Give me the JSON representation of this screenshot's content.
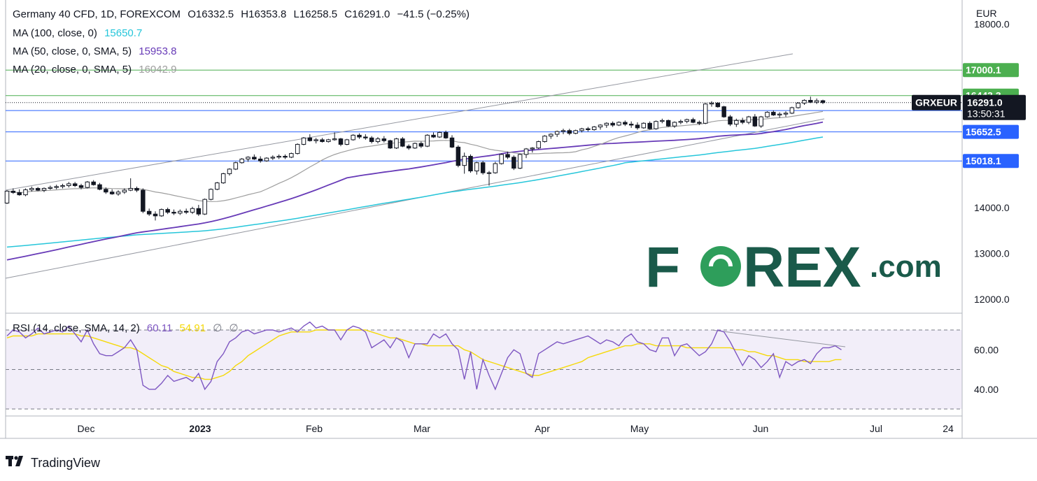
{
  "header": {
    "symbol": "Germany 40 CFD, 1D, FOREXCOM",
    "open_label": "O",
    "open": "16332.5",
    "high_label": "H",
    "high": "16353.8",
    "low_label": "L",
    "low": "16258.5",
    "close_label": "C",
    "close": "16291.0",
    "change": "−41.5 (−0.25%)"
  },
  "indicators": {
    "ma100": {
      "label": "MA (100, close, 0)",
      "value": "15650.7",
      "color": "#26c6da"
    },
    "ma50": {
      "label": "MA (50, close, 0, SMA, 5)",
      "value": "15953.8",
      "color": "#673ab7"
    },
    "ma20": {
      "label": "MA (20, close, 0, SMA, 5)",
      "value": "16042.9",
      "color": "#9e9e9e"
    },
    "rsi": {
      "label": "RSI (14, close, SMA, 14, 2)",
      "value": "60.11",
      "sma_value": "54.91",
      "extra1": "∅",
      "extra2": "∅",
      "color": "#7e57c2",
      "sma_color": "#f5d90a"
    }
  },
  "price_axis": {
    "currency": "EUR",
    "ticks": [
      "18000.0",
      "14000.0",
      "13000.0",
      "12000.0"
    ],
    "levels": [
      {
        "value": "17000.1",
        "color": "#4caf50"
      },
      {
        "value": "16443.3",
        "color": "#4caf50"
      },
      {
        "value": "16117.0",
        "color": "#2962ff"
      },
      {
        "value": "15652.5",
        "color": "#2962ff"
      },
      {
        "value": "15018.1",
        "color": "#2962ff"
      }
    ],
    "current": {
      "symbol": "GRXEUR",
      "price": "16291.0",
      "countdown": "13:50:31"
    }
  },
  "rsi_axis": {
    "ticks": [
      "60.00",
      "40.00"
    ]
  },
  "time_axis": {
    "labels": [
      "Dec",
      "2023",
      "Feb",
      "Mar",
      "Apr",
      "May",
      "Jun",
      "Jul",
      "24"
    ]
  },
  "watermark": {
    "text_a": "F",
    "text_b": "REX",
    "text_c": ".com",
    "color": "#1a5a4a"
  },
  "branding": {
    "text": "TradingView"
  },
  "chart_data": {
    "type": "candlestick",
    "title": "Germany 40 CFD, 1D, FOREXCOM",
    "ylim": [
      11800,
      18100
    ],
    "rsi_ylim": [
      30,
      75
    ],
    "horizontal_levels": [
      17000.1,
      16443.3,
      16117.0,
      15652.5,
      15018.1
    ],
    "candles": [
      [
        14100,
        14380,
        14080,
        14360
      ],
      [
        14360,
        14420,
        14300,
        14330
      ],
      [
        14330,
        14400,
        14260,
        14280
      ],
      [
        14280,
        14420,
        14250,
        14390
      ],
      [
        14390,
        14460,
        14350,
        14420
      ],
      [
        14420,
        14450,
        14360,
        14380
      ],
      [
        14380,
        14440,
        14340,
        14420
      ],
      [
        14420,
        14480,
        14390,
        14440
      ],
      [
        14440,
        14500,
        14400,
        14460
      ],
      [
        14460,
        14520,
        14420,
        14480
      ],
      [
        14480,
        14560,
        14440,
        14520
      ],
      [
        14520,
        14560,
        14450,
        14480
      ],
      [
        14480,
        14520,
        14400,
        14440
      ],
      [
        14440,
        14580,
        14420,
        14560
      ],
      [
        14560,
        14600,
        14480,
        14500
      ],
      [
        14500,
        14540,
        14380,
        14400
      ],
      [
        14400,
        14440,
        14300,
        14340
      ],
      [
        14340,
        14400,
        14280,
        14300
      ],
      [
        14300,
        14380,
        14260,
        14340
      ],
      [
        14340,
        14420,
        14300,
        14380
      ],
      [
        14380,
        14640,
        14360,
        14420
      ],
      [
        14420,
        14460,
        14340,
        14380
      ],
      [
        14380,
        14420,
        13880,
        13920
      ],
      [
        13920,
        13980,
        13820,
        13860
      ],
      [
        13860,
        13920,
        13720,
        13820
      ],
      [
        13820,
        13980,
        13800,
        13960
      ],
      [
        13960,
        14000,
        13860,
        13900
      ],
      [
        13900,
        13960,
        13840,
        13880
      ],
      [
        13880,
        13960,
        13840,
        13920
      ],
      [
        13920,
        13980,
        13860,
        13900
      ],
      [
        13900,
        14020,
        13860,
        13980
      ],
      [
        13980,
        14060,
        13820,
        13860
      ],
      [
        13860,
        14200,
        13840,
        14180
      ],
      [
        14180,
        14420,
        14160,
        14400
      ],
      [
        14400,
        14560,
        14380,
        14540
      ],
      [
        14540,
        14760,
        14520,
        14740
      ],
      [
        14740,
        14860,
        14700,
        14840
      ],
      [
        14840,
        15000,
        14820,
        14980
      ],
      [
        14980,
        15080,
        14960,
        15060
      ],
      [
        15060,
        15120,
        15000,
        15100
      ],
      [
        15100,
        15160,
        15040,
        15060
      ],
      [
        15060,
        15120,
        14980,
        15020
      ],
      [
        15020,
        15100,
        15000,
        15080
      ],
      [
        15080,
        15140,
        15040,
        15100
      ],
      [
        15100,
        15160,
        15060,
        15120
      ],
      [
        15120,
        15160,
        15060,
        15100
      ],
      [
        15100,
        15200,
        15080,
        15180
      ],
      [
        15180,
        15400,
        15160,
        15380
      ],
      [
        15380,
        15540,
        15360,
        15520
      ],
      [
        15520,
        15600,
        15440,
        15460
      ],
      [
        15460,
        15520,
        15400,
        15480
      ],
      [
        15480,
        15520,
        15420,
        15440
      ],
      [
        15440,
        15500,
        15420,
        15480
      ],
      [
        15480,
        15640,
        15460,
        15500
      ],
      [
        15500,
        15520,
        15340,
        15380
      ],
      [
        15380,
        15500,
        15360,
        15480
      ],
      [
        15480,
        15600,
        15460,
        15580
      ],
      [
        15580,
        15620,
        15500,
        15540
      ],
      [
        15540,
        15600,
        15480,
        15520
      ],
      [
        15520,
        15560,
        15400,
        15440
      ],
      [
        15440,
        15540,
        15400,
        15500
      ],
      [
        15500,
        15560,
        15420,
        15460
      ],
      [
        15460,
        15480,
        15280,
        15300
      ],
      [
        15300,
        15520,
        15280,
        15500
      ],
      [
        15500,
        15540,
        15320,
        15340
      ],
      [
        15340,
        15380,
        15260,
        15300
      ],
      [
        15300,
        15420,
        15280,
        15400
      ],
      [
        15400,
        15440,
        15300,
        15340
      ],
      [
        15340,
        15600,
        15320,
        15580
      ],
      [
        15580,
        15640,
        15520,
        15540
      ],
      [
        15540,
        15660,
        15520,
        15640
      ],
      [
        15640,
        15680,
        15500,
        15520
      ],
      [
        15520,
        15580,
        15300,
        15320
      ],
      [
        15320,
        15360,
        14880,
        14920
      ],
      [
        14920,
        15200,
        14740,
        15120
      ],
      [
        15120,
        15160,
        14760,
        14800
      ],
      [
        14800,
        15000,
        14720,
        14980
      ],
      [
        14980,
        15020,
        14720,
        14760
      ],
      [
        14760,
        14800,
        14480,
        14760
      ],
      [
        14760,
        15000,
        14740,
        14960
      ],
      [
        14960,
        15180,
        14940,
        15160
      ],
      [
        15160,
        15220,
        15060,
        15100
      ],
      [
        15100,
        15140,
        14820,
        14860
      ],
      [
        14860,
        15180,
        14840,
        15160
      ],
      [
        15160,
        15300,
        15080,
        15280
      ],
      [
        15280,
        15320,
        15200,
        15300
      ],
      [
        15300,
        15460,
        15280,
        15440
      ],
      [
        15440,
        15580,
        15420,
        15560
      ],
      [
        15560,
        15620,
        15500,
        15600
      ],
      [
        15600,
        15680,
        15540,
        15660
      ],
      [
        15660,
        15720,
        15600,
        15680
      ],
      [
        15680,
        15720,
        15580,
        15620
      ],
      [
        15620,
        15700,
        15600,
        15680
      ],
      [
        15680,
        15740,
        15640,
        15720
      ],
      [
        15720,
        15760,
        15660,
        15700
      ],
      [
        15700,
        15780,
        15680,
        15760
      ],
      [
        15760,
        15820,
        15700,
        15800
      ],
      [
        15800,
        15860,
        15740,
        15840
      ],
      [
        15840,
        15880,
        15760,
        15800
      ],
      [
        15800,
        15880,
        15780,
        15860
      ],
      [
        15860,
        15900,
        15780,
        15820
      ],
      [
        15820,
        15880,
        15740,
        15800
      ],
      [
        15800,
        15860,
        15700,
        15740
      ],
      [
        15740,
        15860,
        15720,
        15840
      ],
      [
        15840,
        15880,
        15700,
        15720
      ],
      [
        15720,
        15900,
        15700,
        15880
      ],
      [
        15880,
        15940,
        15840,
        15900
      ],
      [
        15900,
        15920,
        15760,
        15780
      ],
      [
        15780,
        15880,
        15740,
        15860
      ],
      [
        15860,
        15920,
        15820,
        15880
      ],
      [
        15880,
        15940,
        15840,
        15920
      ],
      [
        15920,
        15960,
        15840,
        15860
      ],
      [
        15860,
        15900,
        15800,
        15840
      ],
      [
        15840,
        16280,
        15820,
        16260
      ],
      [
        16260,
        16320,
        16200,
        16280
      ],
      [
        16280,
        16300,
        16180,
        16200
      ],
      [
        16200,
        16220,
        15960,
        15980
      ],
      [
        15980,
        16020,
        15780,
        15820
      ],
      [
        15820,
        15940,
        15760,
        15900
      ],
      [
        15900,
        15960,
        15820,
        15860
      ],
      [
        15860,
        16000,
        15820,
        15980
      ],
      [
        15980,
        16040,
        15760,
        15780
      ],
      [
        15780,
        16000,
        15740,
        15980
      ],
      [
        15980,
        16100,
        15960,
        16080
      ],
      [
        16080,
        16120,
        16000,
        16020
      ],
      [
        16020,
        16080,
        15960,
        16040
      ],
      [
        16040,
        16100,
        15980,
        16060
      ],
      [
        16060,
        16200,
        16040,
        16180
      ],
      [
        16180,
        16300,
        16160,
        16280
      ],
      [
        16280,
        16360,
        16240,
        16340
      ],
      [
        16340,
        16420,
        16280,
        16300
      ],
      [
        16300,
        16380,
        16260,
        16332
      ],
      [
        16332,
        16354,
        16258,
        16291
      ]
    ],
    "rsi_values": [
      67,
      70,
      69,
      66,
      68,
      71,
      68,
      69,
      70,
      69,
      72,
      68,
      64,
      70,
      63,
      58,
      57,
      57,
      59,
      61,
      65,
      60,
      42,
      40,
      40,
      43,
      47,
      44,
      45,
      46,
      44,
      48,
      40,
      44,
      54,
      58,
      64,
      66,
      69,
      70,
      68,
      69,
      70,
      70,
      69,
      70,
      71,
      69,
      72,
      74,
      71,
      72,
      70,
      70,
      65,
      70,
      72,
      71,
      69,
      61,
      63,
      65,
      61,
      66,
      64,
      56,
      63,
      63,
      63,
      68,
      66,
      68,
      63,
      60,
      45,
      59,
      40,
      55,
      47,
      40,
      48,
      56,
      60,
      58,
      48,
      46,
      58,
      60,
      62,
      64,
      63,
      64,
      65,
      66,
      67,
      65,
      63,
      65,
      64,
      62,
      66,
      68,
      64,
      63,
      60,
      59,
      66,
      66,
      57,
      62,
      63,
      60,
      57,
      59,
      63,
      70,
      69,
      64,
      58,
      52,
      57,
      55,
      51,
      54,
      58,
      46,
      54,
      52,
      54,
      55,
      53,
      58,
      61,
      61,
      62,
      60
    ],
    "rsi_sma_values": [
      66,
      67,
      67,
      67,
      67,
      68,
      68,
      68,
      68,
      68,
      68,
      68,
      67,
      67,
      66,
      65,
      64,
      63,
      62,
      61,
      61,
      60,
      58,
      56,
      54,
      52,
      51,
      49,
      48,
      47,
      46,
      46,
      45,
      45,
      46,
      47,
      49,
      52,
      54,
      57,
      59,
      61,
      63,
      65,
      67,
      68,
      69,
      69,
      69,
      69,
      70,
      70,
      70,
      70,
      70,
      70,
      70,
      70,
      70,
      69,
      68,
      67,
      66,
      66,
      65,
      64,
      63,
      63,
      62,
      62,
      62,
      62,
      62,
      62,
      60,
      59,
      57,
      55,
      54,
      53,
      52,
      51,
      50,
      49,
      48,
      47,
      47,
      48,
      49,
      50,
      51,
      52,
      53,
      54,
      56,
      57,
      58,
      59,
      60,
      61,
      62,
      62,
      63,
      63,
      63,
      62,
      62,
      62,
      62,
      62,
      61,
      61,
      61,
      61,
      61,
      61,
      61,
      61,
      60,
      60,
      59,
      59,
      58,
      57,
      57,
      56,
      55,
      55,
      55,
      54,
      54,
      54,
      54,
      54,
      55,
      55
    ]
  }
}
